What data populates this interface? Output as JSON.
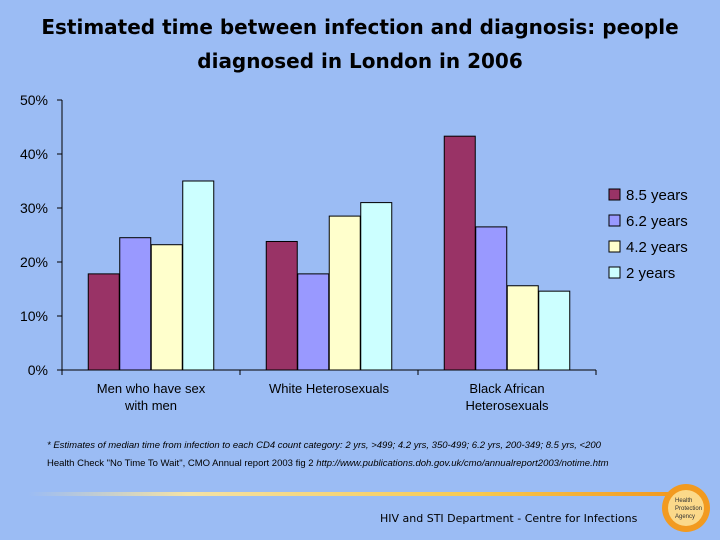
{
  "title_line1": "Estimated time between infection and diagnosis: people",
  "title_line2": "diagnosed in London in 2006",
  "chart_data": {
    "type": "bar",
    "categories": [
      [
        "Men who have sex",
        "with men"
      ],
      [
        "White Heterosexuals"
      ],
      [
        "Black African",
        "Heterosexuals"
      ]
    ],
    "series": [
      {
        "name": "8.5 years",
        "color": "#993366",
        "values": [
          17.8,
          23.8,
          43.3
        ]
      },
      {
        "name": "6.2 years",
        "color": "#9999ff",
        "values": [
          24.5,
          17.8,
          26.5
        ]
      },
      {
        "name": "4.2 years",
        "color": "#ffffcc",
        "values": [
          23.2,
          28.5,
          15.6
        ]
      },
      {
        "name": "2 years",
        "color": "#ccffff",
        "values": [
          35.0,
          31.0,
          14.6
        ]
      }
    ],
    "y_ticks": [
      "0%",
      "10%",
      "20%",
      "30%",
      "40%",
      "50%"
    ],
    "ylim": [
      0,
      50
    ],
    "legend": "right"
  },
  "footnote_line1": "* Estimates of median time from infection to each CD4 count category:  2 yrs, >499; 4.2 yrs, 350-499; 6.2 yrs, 200-349; 8.5 yrs, <200",
  "footnote_line2_plain": "Health Check \"No Time To Wait\", CMO Annual report 2003 fig 2 ",
  "footnote_line2_url": "http://www.publications.doh.gov.uk/cmo/annualreport2003/notime.htm",
  "footer_text": "HIV and STI Department  - Centre for Infections",
  "logo_text": [
    "Health",
    "Protection",
    "Agency"
  ]
}
